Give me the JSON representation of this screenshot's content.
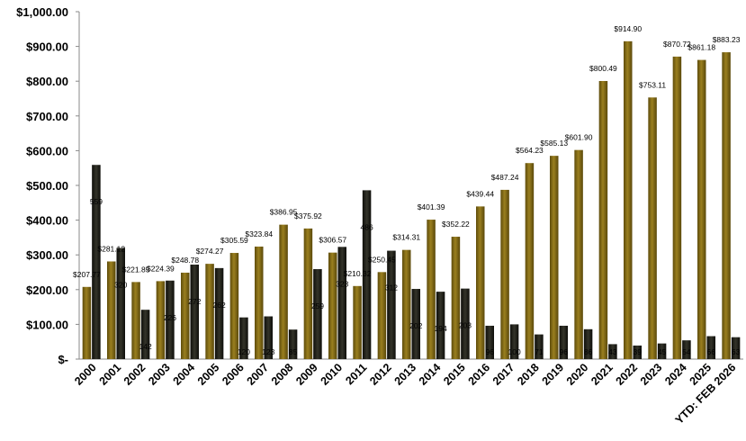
{
  "chart_data": {
    "type": "bar",
    "title": "",
    "xlabel": "",
    "ylabel": "",
    "ylim": [
      0,
      1000
    ],
    "y_ticks": [
      "$-",
      "$100.00",
      "$200.00",
      "$300.00",
      "$400.00",
      "$500.00",
      "$600.00",
      "$700.00",
      "$800.00",
      "$900.00",
      "$1,000.00"
    ],
    "y_tick_values": [
      0,
      100,
      200,
      300,
      400,
      500,
      600,
      700,
      800,
      900,
      1000
    ],
    "grid": false,
    "legend": "none",
    "categories": [
      "2000",
      "2001",
      "2002",
      "2003",
      "2004",
      "2005",
      "2006",
      "2007",
      "2008",
      "2009",
      "2010",
      "2011",
      "2012",
      "2013",
      "2014",
      "2015",
      "2016",
      "2017",
      "2018",
      "2019",
      "2020",
      "2021",
      "2022",
      "2023",
      "2024",
      "2025",
      "YTD: FEB 2026"
    ],
    "series": [
      {
        "color": "#7a6414",
        "values": [
          207.77,
          281.12,
          221.85,
          224.39,
          248.78,
          274.27,
          305.59,
          323.84,
          386.95,
          375.92,
          306.57,
          210.32,
          250.45,
          314.31,
          401.39,
          352.22,
          439.44,
          487.24,
          564.23,
          585.13,
          601.9,
          800.49,
          914.9,
          753.11,
          870.72,
          861.18,
          883.23
        ],
        "labels": [
          "$207.77",
          "$281.12",
          "$221.85",
          "$224.39",
          "$248.78",
          "$274.27",
          "$305.59",
          "$323.84",
          "$386.95",
          "$375.92",
          "$306.57",
          "$210.32",
          "$250.45",
          "$314.31",
          "$401.39",
          "$352.22",
          "$439.44",
          "$487.24",
          "$564.23",
          "$585.13",
          "$601.90",
          "$800.49",
          "$914.90",
          "$753.11",
          "$870.72",
          "$861.18",
          "$883.23"
        ]
      },
      {
        "color": "#1f1f17",
        "values": [
          559,
          320,
          142,
          226,
          272,
          262,
          120,
          123,
          85,
          259,
          323,
          486,
          312,
          202,
          194,
          203,
          96,
          100,
          71,
          96,
          86,
          43,
          39,
          45,
          54,
          66,
          63
        ],
        "labels": [
          "559",
          "320",
          "142",
          "226",
          "272",
          "262",
          "120",
          "123",
          "85",
          "259",
          "323",
          "486",
          "312",
          "202",
          "194",
          "203",
          "96",
          "100",
          "71",
          "96",
          "86",
          "43",
          "39",
          "45",
          "54",
          "66",
          "63"
        ]
      }
    ]
  }
}
